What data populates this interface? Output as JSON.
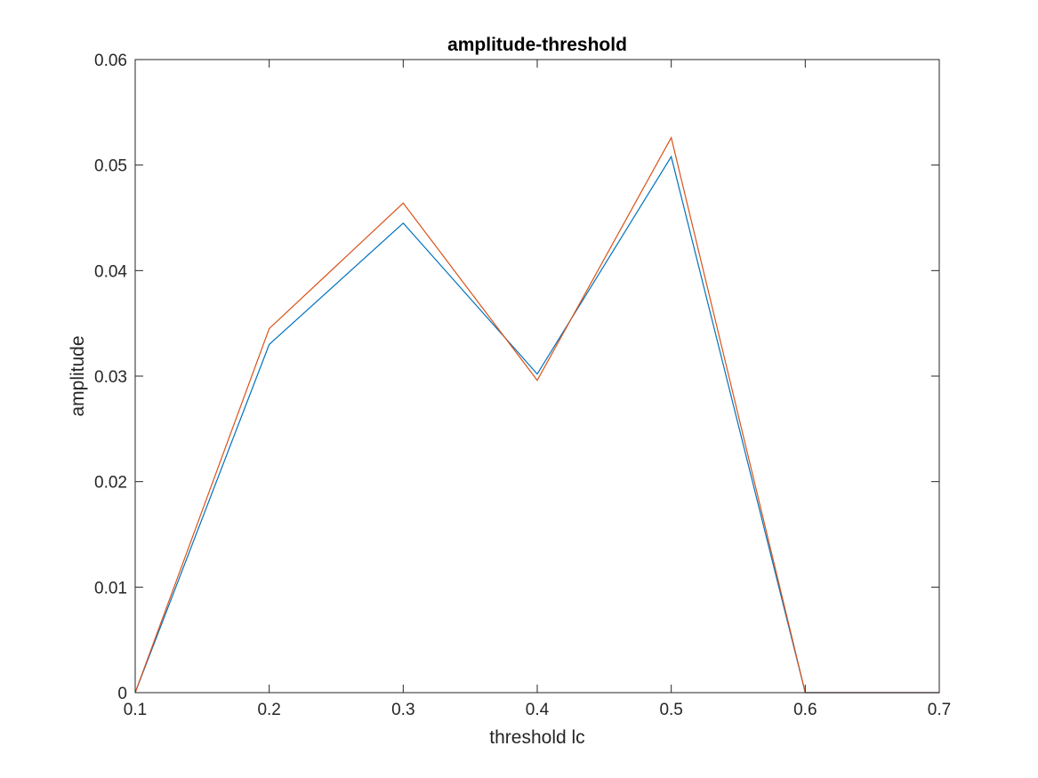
{
  "chart_data": {
    "type": "line",
    "title": "amplitude-threshold",
    "xlabel": "threshold lc",
    "ylabel": "amplitude",
    "xlim": [
      0.1,
      0.7
    ],
    "ylim": [
      0,
      0.06
    ],
    "x_ticks": [
      "0.1",
      "0.2",
      "0.3",
      "0.4",
      "0.5",
      "0.6",
      "0.7"
    ],
    "y_ticks": [
      "0",
      "0.01",
      "0.02",
      "0.03",
      "0.04",
      "0.05",
      "0.06"
    ],
    "grid": false,
    "box": true,
    "series": [
      {
        "color": "#0072BD",
        "x": [
          0.1,
          0.2,
          0.3,
          0.4,
          0.5,
          0.6,
          0.7
        ],
        "y": [
          0,
          0.033,
          0.0445,
          0.0302,
          0.0508,
          0,
          0
        ]
      },
      {
        "color": "#D95319",
        "x": [
          0.1,
          0.2,
          0.3,
          0.4,
          0.5,
          0.6,
          0.7
        ],
        "y": [
          0,
          0.0345,
          0.0464,
          0.0296,
          0.0526,
          0,
          0
        ]
      }
    ]
  }
}
